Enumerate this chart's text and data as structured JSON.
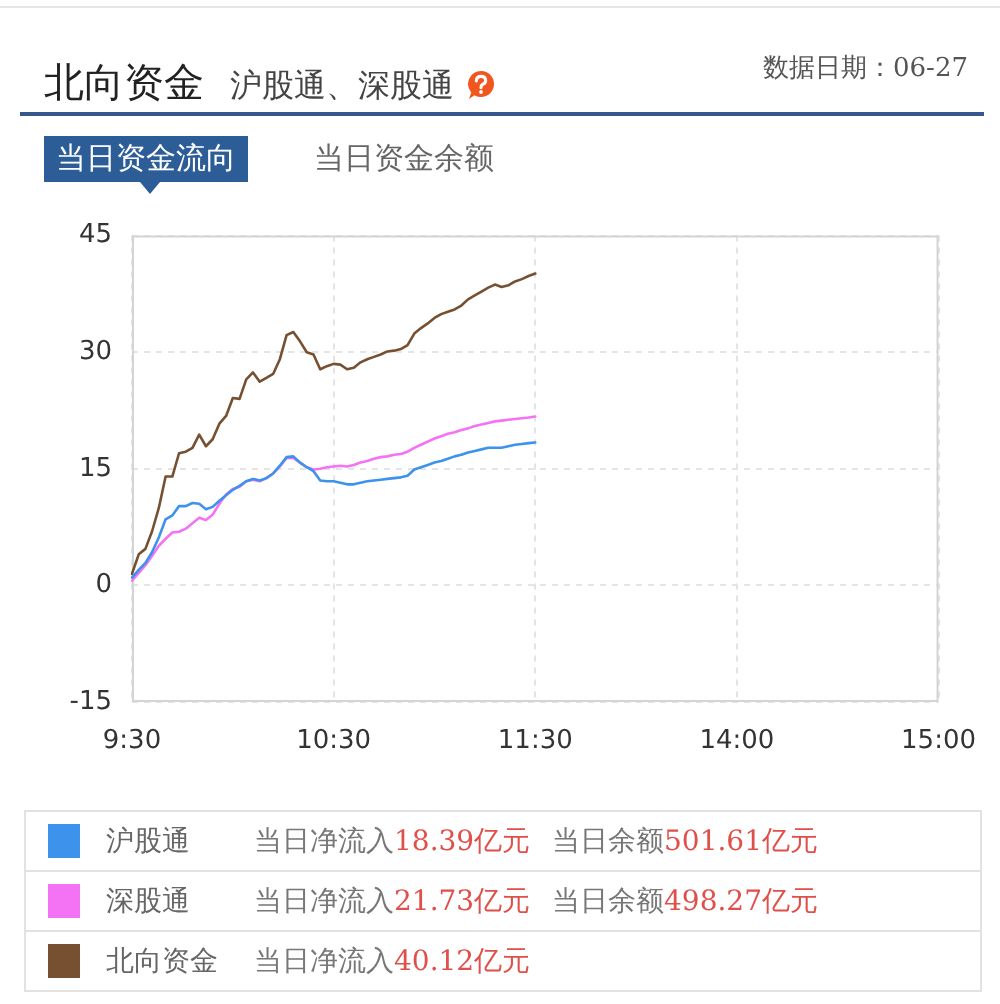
{
  "chart_data": {
    "type": "line",
    "title": "北向资金",
    "subtitle": "沪股通、深股通",
    "annotations": [
      "数据日期：06-27",
      "当日资金流向",
      "当日资金余额",
      "当日净流入18.39亿元",
      "当日余额501.61亿元",
      "当日净流入21.73亿元",
      "当日余额498.27亿元",
      "当日净流入40.12亿元"
    ],
    "categories": [
      "9:30",
      null,
      null,
      null,
      null,
      null,
      null,
      null,
      null,
      null,
      null,
      null,
      null,
      null,
      null,
      null,
      null,
      null,
      null,
      null,
      null,
      null,
      null,
      null,
      null,
      null,
      null,
      null,
      null,
      null,
      "10:30",
      null,
      null,
      null,
      null,
      null,
      null,
      null,
      null,
      null,
      null,
      null,
      null,
      null,
      null,
      null,
      null,
      null,
      null,
      null,
      null,
      null,
      null,
      null,
      null,
      null,
      null,
      null,
      null,
      null,
      "11:30",
      null,
      null,
      null,
      null,
      null,
      null,
      null,
      null,
      null,
      null,
      null,
      null,
      null,
      null,
      null,
      null,
      null,
      null,
      null,
      null,
      null,
      null,
      null,
      null,
      null,
      null,
      null,
      null,
      null,
      "14:00",
      null,
      null,
      null,
      null,
      null,
      null,
      null,
      null,
      null,
      null,
      null,
      null,
      null,
      null,
      null,
      null,
      null,
      null,
      null,
      null,
      null,
      null,
      null,
      null,
      null,
      null,
      null,
      null,
      null,
      "15:00"
    ],
    "ylim": [
      -15,
      45
    ],
    "yticks": [
      -15,
      0,
      15,
      30,
      45
    ],
    "grid": true,
    "legend": "bottom",
    "series": [
      {
        "name": "沪股通",
        "color": "#3d93ec",
        "values": [
          1.0,
          2.0,
          2.9,
          4.3,
          6.2,
          8.5,
          9.0,
          10.2,
          10.2,
          10.6,
          10.5,
          9.8,
          10.1,
          10.9,
          11.6,
          12.3,
          12.8,
          13.4,
          13.7,
          13.5,
          13.8,
          14.4,
          15.4,
          16.5,
          16.6,
          15.8,
          15.2,
          14.7,
          13.5,
          13.4,
          13.4,
          13.2,
          13.0,
          13.0,
          13.2,
          13.4,
          13.5,
          13.6,
          13.7,
          13.8,
          13.9,
          14.1,
          14.9,
          15.2,
          15.5,
          15.8,
          16.0,
          16.3,
          16.6,
          16.8,
          17.1,
          17.3,
          17.5,
          17.7,
          17.7,
          17.7,
          17.9,
          18.1,
          18.2,
          18.3,
          18.39,
          null,
          null,
          null,
          null,
          null,
          null,
          null,
          null,
          null,
          null,
          null,
          null,
          null,
          null,
          null,
          null,
          null,
          null,
          null,
          null,
          null,
          null,
          null,
          null,
          null,
          null,
          null,
          null,
          null,
          null,
          null,
          null,
          null,
          null,
          null,
          null,
          null,
          null,
          null,
          null,
          null,
          null,
          null,
          null,
          null,
          null,
          null,
          null,
          null,
          null,
          null,
          null,
          null,
          null,
          null,
          null,
          null,
          null,
          null,
          null
        ]
      },
      {
        "name": "深股通",
        "color": "#f472f4",
        "values": [
          0.6,
          1.6,
          2.6,
          3.8,
          5.1,
          6.0,
          6.8,
          6.9,
          7.3,
          8.0,
          8.7,
          8.4,
          9.1,
          10.5,
          11.7,
          12.4,
          12.7,
          13.4,
          13.6,
          13.4,
          13.8,
          14.4,
          15.3,
          16.4,
          16.4,
          15.8,
          15.2,
          14.9,
          15.0,
          15.2,
          15.3,
          15.4,
          15.3,
          15.5,
          15.8,
          16.0,
          16.3,
          16.5,
          16.6,
          16.8,
          16.9,
          17.2,
          17.7,
          18.1,
          18.5,
          18.9,
          19.2,
          19.5,
          19.7,
          20.0,
          20.2,
          20.5,
          20.7,
          20.9,
          21.1,
          21.2,
          21.3,
          21.4,
          21.5,
          21.6,
          21.73,
          null,
          null,
          null,
          null,
          null,
          null,
          null,
          null,
          null,
          null,
          null,
          null,
          null,
          null,
          null,
          null,
          null,
          null,
          null,
          null,
          null,
          null,
          null,
          null,
          null,
          null,
          null,
          null,
          null,
          null,
          null,
          null,
          null,
          null,
          null,
          null,
          null,
          null,
          null,
          null,
          null,
          null,
          null,
          null,
          null,
          null,
          null,
          null,
          null,
          null,
          null,
          null,
          null,
          null,
          null,
          null,
          null,
          null,
          null,
          null
        ]
      },
      {
        "name": "北向资金",
        "color": "#765030",
        "values": [
          1.5,
          4.0,
          4.7,
          7.0,
          10.0,
          14.0,
          14.0,
          17.0,
          17.2,
          17.7,
          19.4,
          17.9,
          18.8,
          20.8,
          21.8,
          24.1,
          24.0,
          26.5,
          27.4,
          26.2,
          26.7,
          27.2,
          29.1,
          32.2,
          32.6,
          31.4,
          30.0,
          29.7,
          27.8,
          28.2,
          28.5,
          28.4,
          27.8,
          28.0,
          28.7,
          29.1,
          29.4,
          29.7,
          30.1,
          30.2,
          30.4,
          30.9,
          32.4,
          33.1,
          33.7,
          34.4,
          34.9,
          35.2,
          35.5,
          36.0,
          36.8,
          37.3,
          37.8,
          38.3,
          38.7,
          38.4,
          38.6,
          39.1,
          39.4,
          39.8,
          40.12,
          null,
          null,
          null,
          null,
          null,
          null,
          null,
          null,
          null,
          null,
          null,
          null,
          null,
          null,
          null,
          null,
          null,
          null,
          null,
          null,
          null,
          null,
          null,
          null,
          null,
          null,
          null,
          null,
          null,
          null,
          null,
          null,
          null,
          null,
          null,
          null,
          null,
          null,
          null,
          null,
          null,
          null,
          null,
          null,
          null,
          null,
          null,
          null,
          null,
          null,
          null,
          null,
          null,
          null,
          null,
          null,
          null,
          null,
          null,
          null
        ]
      }
    ]
  }
}
